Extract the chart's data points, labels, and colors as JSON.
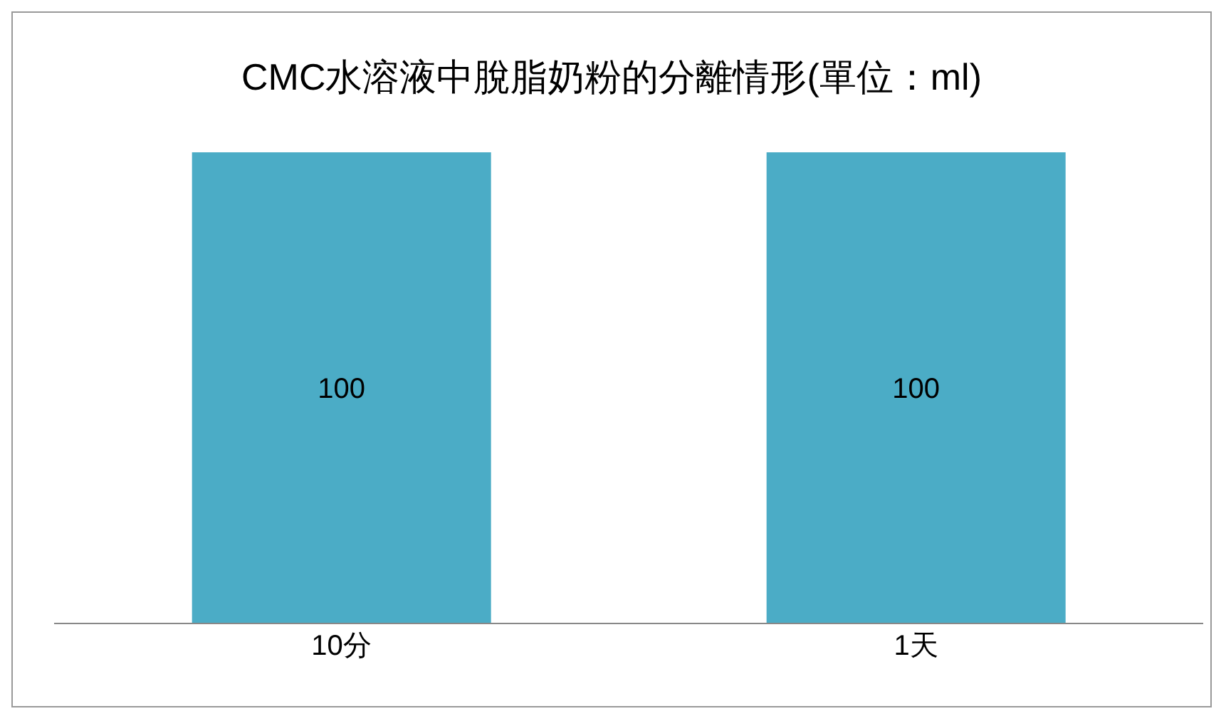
{
  "chart_data": {
    "type": "bar",
    "title": "CMC水溶液中脫脂奶粉的分離情形(單位：ml)",
    "categories": [
      "10分",
      "1天"
    ],
    "values": [
      100,
      100
    ],
    "color": "#4bacc6",
    "data_labels": true
  }
}
